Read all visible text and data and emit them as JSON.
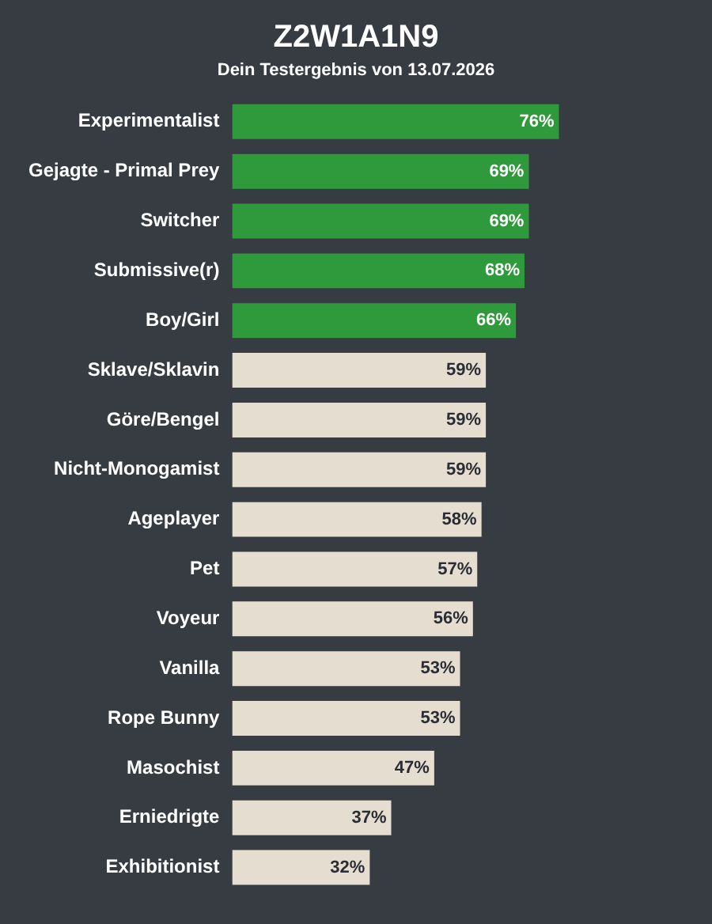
{
  "chart_data": {
    "type": "bar",
    "orientation": "horizontal",
    "title": "Z2W1A1N9",
    "subtitle": "Dein Testergebnis von 13.07.2026",
    "categories": [
      "Experimentalist",
      "Gejagte - Primal Prey",
      "Switcher",
      "Submissive(r)",
      "Boy/Girl",
      "Sklave/Sklavin",
      "Göre/Bengel",
      "Nicht-Monogamist",
      "Ageplayer",
      "Pet",
      "Voyeur",
      "Vanilla",
      "Rope Bunny",
      "Masochist",
      "Erniedrigte",
      "Exhibitionist"
    ],
    "values": [
      76,
      69,
      69,
      68,
      66,
      59,
      59,
      59,
      58,
      57,
      56,
      53,
      53,
      47,
      37,
      32
    ],
    "value_labels": [
      "76%",
      "69%",
      "69%",
      "68%",
      "66%",
      "59%",
      "59%",
      "59%",
      "58%",
      "57%",
      "56%",
      "53%",
      "53%",
      "47%",
      "37%",
      "32%"
    ],
    "colors": [
      "#2f9a3c",
      "#2f9a3c",
      "#2f9a3c",
      "#2f9a3c",
      "#2f9a3c",
      "#e4ddd0",
      "#e4ddd0",
      "#e4ddd0",
      "#e4ddd0",
      "#e4ddd0",
      "#e4ddd0",
      "#e4ddd0",
      "#e4ddd0",
      "#e4ddd0",
      "#e4ddd0",
      "#e4ddd0"
    ],
    "grid": false,
    "legend": false
  }
}
